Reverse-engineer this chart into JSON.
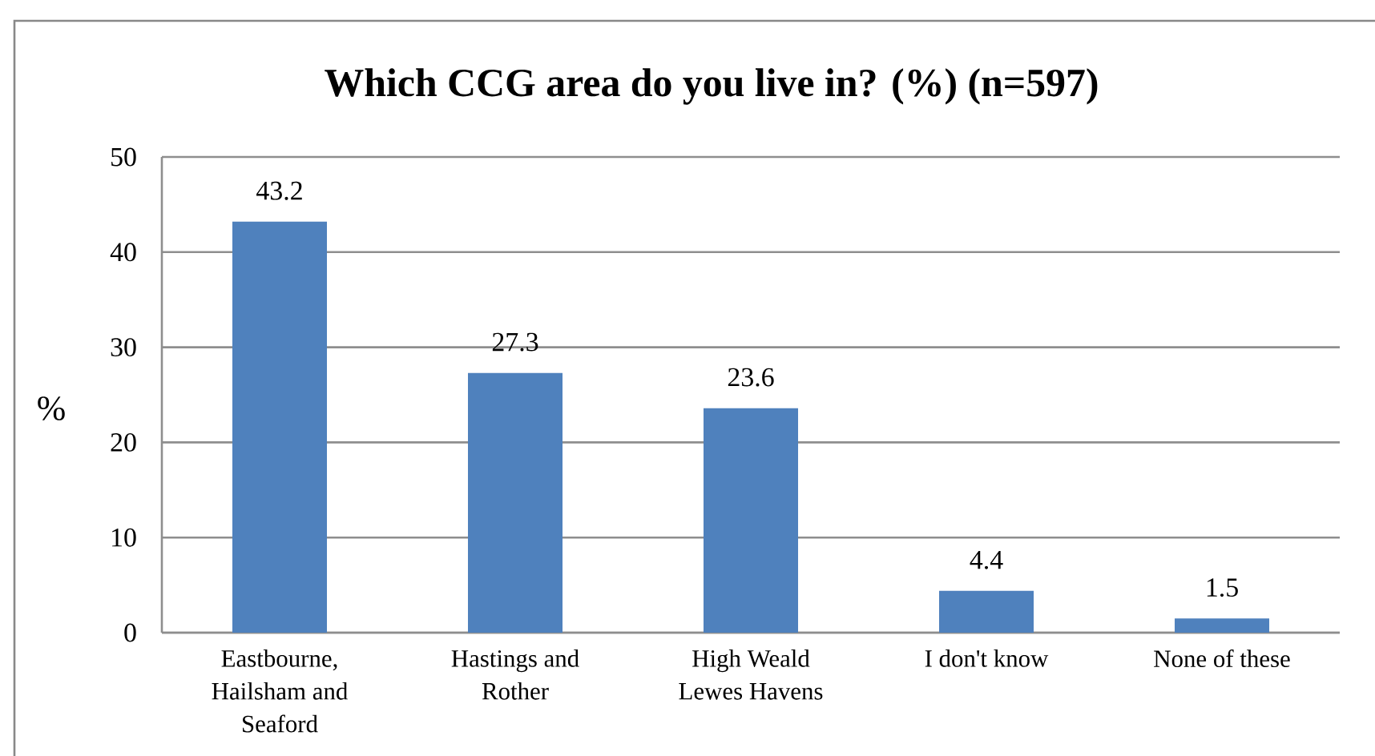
{
  "chart_data": {
    "type": "bar",
    "title": "Which CCG area do you live in? (%) (n=597)",
    "ylabel": "%",
    "categories": [
      "Eastbourne, Hailsham and Seaford",
      "Hastings and Rother",
      "High Weald Lewes Havens",
      "I don't know",
      "None of these"
    ],
    "values": [
      43.2,
      27.3,
      23.6,
      4.4,
      1.5
    ],
    "color": "#4f81bd",
    "ylim": [
      0,
      50
    ],
    "yticks": [
      0,
      10,
      20,
      30,
      40,
      50
    ],
    "grid": "y",
    "data_labels": true
  }
}
